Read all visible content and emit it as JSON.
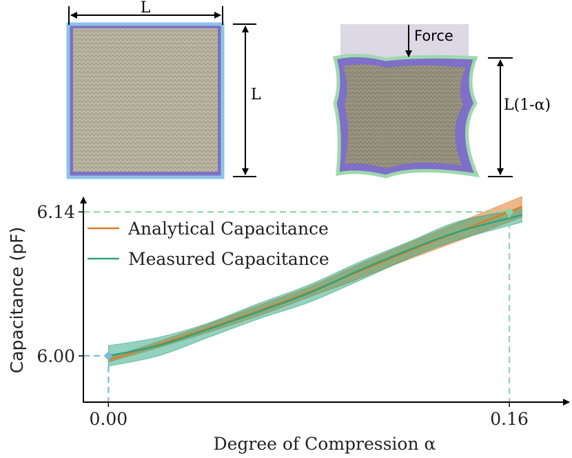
{
  "top_images": {
    "left_label_width": "L",
    "left_label_height": "L",
    "right_force_label": "Force",
    "right_height_label": "L(1-α)"
  },
  "chart_data": {
    "type": "line",
    "xlabel": "Degree of Compression α",
    "ylabel": "Capacitance (pF)",
    "xlim": [
      -0.01,
      0.185
    ],
    "ylim": [
      5.955,
      6.175
    ],
    "x_ticks": [
      0.0,
      0.16
    ],
    "x_tick_labels": [
      "0.00",
      "0.16"
    ],
    "y_ticks": [
      6.0,
      6.14
    ],
    "y_tick_labels": [
      "6.00",
      "6.14"
    ],
    "grid": false,
    "legend_position": "top-left",
    "series": [
      {
        "name": "Analytical Capacitance",
        "color": "#e07b25",
        "x": [
          0.0,
          0.02,
          0.04,
          0.06,
          0.08,
          0.1,
          0.12,
          0.14,
          0.165
        ],
        "y": [
          5.996,
          6.011,
          6.027,
          6.044,
          6.062,
          6.082,
          6.102,
          6.121,
          6.145
        ],
        "lower": [
          5.994,
          6.008,
          6.023,
          6.039,
          6.057,
          6.075,
          6.094,
          6.112,
          6.135
        ],
        "upper": [
          5.998,
          6.014,
          6.031,
          6.049,
          6.067,
          6.089,
          6.11,
          6.13,
          6.155
        ]
      },
      {
        "name": "Measured Capacitance",
        "color": "#2aa37e",
        "x": [
          0.0,
          0.02,
          0.04,
          0.06,
          0.08,
          0.1,
          0.12,
          0.14,
          0.165
        ],
        "y": [
          6.0,
          6.01,
          6.026,
          6.043,
          6.061,
          6.083,
          6.103,
          6.121,
          6.137
        ],
        "lower": [
          5.99,
          6.0,
          6.018,
          6.036,
          6.052,
          6.073,
          6.095,
          6.113,
          6.13
        ],
        "upper": [
          6.01,
          6.018,
          6.032,
          6.051,
          6.069,
          6.091,
          6.111,
          6.131,
          6.143
        ]
      }
    ],
    "reference_points": [
      {
        "x": 0.0,
        "y": 6.0,
        "color": "#7ab8dd"
      },
      {
        "x": 0.16,
        "y": 6.14,
        "color": "#8fd3a6"
      }
    ]
  }
}
